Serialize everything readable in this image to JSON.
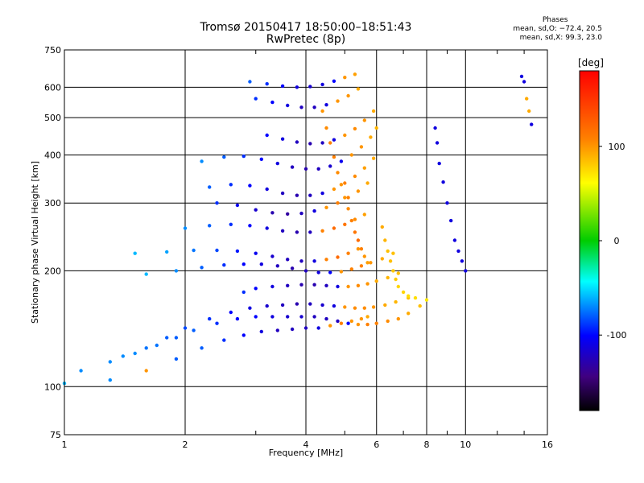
{
  "chart_data": {
    "type": "scatter",
    "title": "Tromsø 20150417 18:50:00–18:51:43",
    "subtitle": "RwPretec (8p)",
    "xlabel": "Frequency [MHz]",
    "ylabel": "Stationary phase Virtual Height [km]",
    "x_scale": "log",
    "y_scale": "log",
    "xlim": [
      1,
      16
    ],
    "ylim": [
      75,
      750
    ],
    "x_ticks": [
      1,
      2,
      4,
      6,
      8,
      10,
      16
    ],
    "x_tick_labels": [
      "1",
      "2",
      "4",
      "6",
      "8",
      "10",
      "16"
    ],
    "x_grid": [
      2,
      4,
      6,
      8,
      10
    ],
    "y_ticks": [
      75,
      100,
      200,
      300,
      400,
      500,
      600,
      750
    ],
    "y_tick_labels": [
      "75",
      "100",
      "200",
      "300",
      "400",
      "500",
      "600",
      "750"
    ],
    "y_grid": [
      100,
      200,
      300,
      400,
      500,
      600
    ],
    "grid": true,
    "colorbar": {
      "label": "[deg]",
      "range": [
        -180,
        180
      ],
      "ticks": [
        100,
        0,
        -100
      ],
      "tick_labels": [
        "100",
        "0",
        "-100"
      ],
      "colors": [
        "#ff0000",
        "#ff8000",
        "#ffff00",
        "#00cc00",
        "#00ffff",
        "#0000ff",
        "#400080",
        "#000000"
      ]
    },
    "stats": {
      "heading": "Phases",
      "line_o": "mean, sd,O: −72.4, 20.5",
      "line_x": "mean, sd,X:  99.3, 23.0"
    },
    "series": [
      {
        "x": [
          1.0,
          1.3,
          1.6,
          1.9,
          2.2,
          2.5,
          2.8,
          3.1,
          3.4,
          3.7,
          4.0,
          4.3,
          4.6,
          4.9,
          5.2,
          5.5,
          5.7
        ],
        "y": [
          102,
          104,
          110,
          118,
          126,
          132,
          136,
          139,
          140,
          141,
          142,
          142,
          144,
          146,
          148,
          150,
          152
        ],
        "phase": [
          -60,
          -70,
          110,
          -80,
          -80,
          -90,
          -100,
          -110,
          -120,
          -120,
          -120,
          -110,
          110,
          120,
          110,
          110,
          100
        ]
      },
      {
        "x": [
          1.1,
          1.3,
          1.5,
          1.7,
          1.9,
          2.1,
          2.4,
          2.7,
          3.0,
          3.3,
          3.6,
          3.9,
          4.2,
          4.5,
          4.8,
          5.1,
          5.4,
          5.7,
          6.0,
          6.4,
          6.8,
          7.2,
          7.7
        ],
        "y": [
          110,
          116,
          122,
          128,
          134,
          140,
          146,
          150,
          152,
          152,
          152,
          152,
          152,
          150,
          148,
          146,
          145,
          145,
          146,
          148,
          150,
          155,
          162
        ],
        "phase": [
          -70,
          -70,
          -70,
          -75,
          -80,
          -80,
          -90,
          -100,
          -100,
          -110,
          -115,
          -115,
          -120,
          -120,
          -120,
          -100,
          110,
          120,
          120,
          115,
          110,
          100,
          90
        ]
      },
      {
        "x": [
          1.4,
          1.6,
          1.8,
          2.0,
          2.3,
          2.6,
          2.9,
          3.2,
          3.5,
          3.8,
          4.1,
          4.4,
          4.7,
          5.0,
          5.3,
          5.6,
          5.9,
          6.3,
          6.7,
          7.2
        ],
        "y": [
          120,
          126,
          134,
          142,
          150,
          156,
          160,
          162,
          163,
          164,
          164,
          163,
          162,
          161,
          160,
          160,
          161,
          163,
          166,
          170
        ],
        "phase": [
          -70,
          -75,
          -80,
          -85,
          -90,
          -100,
          -110,
          -115,
          -120,
          -125,
          -120,
          -115,
          -110,
          110,
          115,
          115,
          110,
          100,
          95,
          90
        ]
      },
      {
        "x": [
          2.8,
          3.0,
          3.3,
          3.6,
          3.9,
          4.2,
          4.5,
          4.8,
          5.1,
          5.4,
          5.7,
          6.0,
          6.4,
          6.8
        ],
        "y": [
          176,
          180,
          182,
          183,
          184,
          184,
          183,
          182,
          182,
          183,
          185,
          188,
          192,
          197
        ],
        "phase": [
          -90,
          -100,
          -110,
          -120,
          -125,
          -125,
          -120,
          -110,
          110,
          115,
          110,
          100,
          95,
          90
        ]
      },
      {
        "x": [
          1.6,
          1.9,
          2.2,
          2.5,
          2.8,
          3.1,
          3.4,
          3.7,
          4.0,
          4.3,
          4.6,
          4.9,
          5.2,
          5.5,
          5.8,
          6.2,
          6.6
        ],
        "y": [
          196,
          200,
          204,
          207,
          208,
          208,
          206,
          203,
          200,
          198,
          198,
          199,
          202,
          206,
          210,
          215,
          222
        ],
        "phase": [
          -60,
          -70,
          -80,
          -90,
          -100,
          -110,
          -120,
          -125,
          -120,
          -110,
          -100,
          110,
          120,
          120,
          110,
          100,
          90
        ]
      },
      {
        "x": [
          1.5,
          1.8,
          2.1,
          2.4,
          2.7,
          3.0,
          3.3,
          3.6,
          3.9,
          4.2,
          4.5,
          4.8,
          5.1,
          5.4
        ],
        "y": [
          222,
          224,
          226,
          226,
          225,
          222,
          218,
          214,
          212,
          212,
          214,
          217,
          222,
          228
        ],
        "phase": [
          -60,
          -65,
          -75,
          -85,
          -95,
          -105,
          -115,
          -120,
          -120,
          -110,
          120,
          130,
          120,
          110
        ]
      },
      {
        "x": [
          2.0,
          2.3,
          2.6,
          2.9,
          3.2,
          3.5,
          3.8,
          4.1,
          4.4,
          4.7,
          5.0,
          5.3,
          5.6
        ],
        "y": [
          258,
          262,
          264,
          262,
          258,
          254,
          252,
          252,
          254,
          258,
          264,
          272,
          280
        ],
        "phase": [
          -70,
          -80,
          -90,
          -100,
          -110,
          -120,
          -125,
          -120,
          120,
          130,
          125,
          115,
          105
        ]
      },
      {
        "x": [
          2.4,
          2.7,
          3.0,
          3.3,
          3.6,
          3.9,
          4.2,
          4.5,
          4.8,
          5.1,
          5.4,
          5.7
        ],
        "y": [
          300,
          296,
          288,
          283,
          281,
          282,
          286,
          292,
          300,
          310,
          322,
          338
        ],
        "phase": [
          -90,
          -105,
          -115,
          -125,
          -130,
          -120,
          -110,
          110,
          120,
          120,
          110,
          100
        ]
      },
      {
        "x": [
          2.3,
          2.6,
          2.9,
          3.2,
          3.5,
          3.8,
          4.1,
          4.4,
          4.7,
          5.0,
          5.3,
          5.6,
          5.9
        ],
        "y": [
          330,
          335,
          333,
          326,
          318,
          314,
          314,
          318,
          326,
          338,
          352,
          370,
          392
        ],
        "phase": [
          -80,
          -90,
          -100,
          -110,
          -120,
          -125,
          -120,
          -110,
          110,
          120,
          115,
          105,
          100
        ]
      },
      {
        "x": [
          2.2,
          2.5,
          2.8,
          3.1,
          3.4,
          3.7,
          4.0,
          4.3,
          4.6,
          4.9,
          5.2,
          5.5,
          5.8,
          6.0
        ],
        "y": [
          385,
          395,
          397,
          390,
          380,
          372,
          368,
          368,
          374,
          385,
          400,
          420,
          445,
          470
        ],
        "phase": [
          -70,
          -80,
          -90,
          -100,
          -110,
          -120,
          -125,
          -120,
          -115,
          -105,
          110,
          110,
          100,
          95
        ]
      },
      {
        "x": [
          3.2,
          3.5,
          3.8,
          4.1,
          4.4,
          4.7,
          5.0,
          5.3,
          5.6,
          5.9
        ],
        "y": [
          450,
          440,
          432,
          428,
          430,
          438,
          450,
          468,
          492,
          520
        ],
        "phase": [
          -100,
          -110,
          -120,
          -125,
          -120,
          -110,
          110,
          115,
          110,
          100
        ]
      },
      {
        "x": [
          3.0,
          3.3,
          3.6,
          3.9,
          4.2,
          4.5,
          4.8,
          5.1,
          5.4
        ],
        "y": [
          560,
          548,
          538,
          532,
          532,
          540,
          552,
          570,
          594
        ],
        "phase": [
          -90,
          -100,
          -110,
          -120,
          -120,
          -110,
          110,
          110,
          100
        ]
      },
      {
        "x": [
          2.9,
          3.2,
          3.5,
          3.8,
          4.1,
          4.4,
          4.7,
          5.0,
          5.3
        ],
        "y": [
          620,
          612,
          604,
          600,
          602,
          610,
          622,
          636,
          648
        ],
        "phase": [
          -80,
          -90,
          -100,
          -110,
          -115,
          -110,
          -100,
          110,
          105
        ]
      },
      {
        "x": [
          4.4,
          4.5,
          4.6,
          4.7,
          4.8,
          4.9,
          5.0,
          5.1,
          5.2,
          5.3,
          5.4,
          5.5,
          5.6,
          5.7
        ],
        "y": [
          520,
          470,
          430,
          395,
          360,
          335,
          310,
          290,
          270,
          252,
          240,
          228,
          218,
          210
        ],
        "phase": [
          110,
          115,
          120,
          120,
          115,
          110,
          110,
          115,
          120,
          125,
          130,
          120,
          110,
          105
        ]
      },
      {
        "x": [
          6.2,
          6.3,
          6.4,
          6.5,
          6.6,
          6.7,
          6.8,
          7.0,
          7.2,
          7.5,
          8.0
        ],
        "y": [
          260,
          240,
          225,
          212,
          200,
          190,
          182,
          176,
          172,
          170,
          168
        ],
        "phase": [
          100,
          95,
          90,
          90,
          85,
          85,
          80,
          80,
          75,
          75,
          70
        ]
      },
      {
        "x": [
          8.4,
          8.5,
          8.6,
          8.8,
          9.0,
          9.2,
          9.4,
          9.6,
          9.8,
          10.0
        ],
        "y": [
          470,
          430,
          380,
          340,
          300,
          270,
          240,
          225,
          212,
          200
        ],
        "phase": [
          -110,
          -110,
          -110,
          -110,
          -110,
          -110,
          -110,
          -110,
          -110,
          -110
        ]
      },
      {
        "x": [
          13.8,
          14.0,
          14.2,
          14.4,
          14.6
        ],
        "y": [
          640,
          620,
          560,
          520,
          480
        ],
        "phase": [
          -110,
          -110,
          100,
          100,
          -110
        ]
      }
    ]
  }
}
